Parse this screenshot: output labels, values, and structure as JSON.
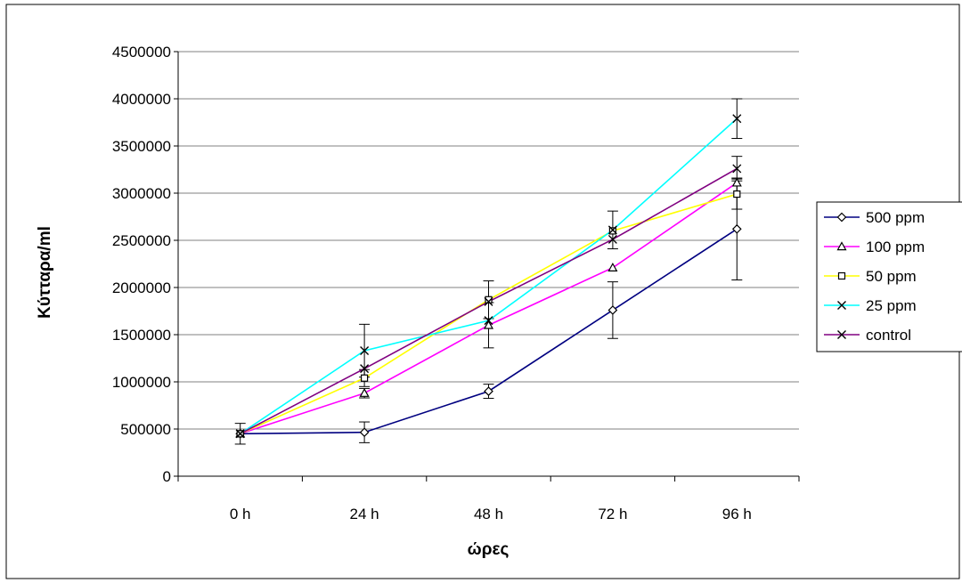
{
  "chart_data": {
    "type": "line",
    "title": "",
    "xlabel": "ώρες",
    "ylabel": "Κύτταρα/ml",
    "categories": [
      "0 h",
      "24 h",
      "48 h",
      "72 h",
      "96 h"
    ],
    "ylim": [
      0,
      4500000
    ],
    "yticks": [
      0,
      500000,
      1000000,
      1500000,
      2000000,
      2500000,
      3000000,
      3500000,
      4000000,
      4500000
    ],
    "ytick_labels": [
      "0",
      "500000",
      "1000000",
      "1500000",
      "2000000",
      "2500000",
      "3000000",
      "3500000",
      "4000000",
      "4500000"
    ],
    "grid": "horizontal",
    "legend_position": "right",
    "series": [
      {
        "name": "500 ppm",
        "color": "#000080",
        "marker": "diamond",
        "values": [
          450000,
          465000,
          900000,
          1760000,
          2620000
        ],
        "error": [
          110000,
          110000,
          75000,
          300000,
          540000
        ]
      },
      {
        "name": "100 ppm",
        "color": "#ff00ff",
        "marker": "triangle",
        "values": [
          450000,
          880000,
          1600000,
          2210000,
          3110000
        ],
        "error": [
          0,
          50000,
          240000,
          0,
          0
        ]
      },
      {
        "name": "50 ppm",
        "color": "#ffff00",
        "marker": "square",
        "values": [
          450000,
          1040000,
          1870000,
          2600000,
          2990000
        ],
        "error": [
          0,
          90000,
          200000,
          0,
          160000
        ]
      },
      {
        "name": "25 ppm",
        "color": "#00ffff",
        "marker": "x",
        "values": [
          450000,
          1330000,
          1650000,
          2610000,
          3790000
        ],
        "error": [
          0,
          280000,
          0,
          200000,
          210000
        ]
      },
      {
        "name": "control",
        "color": "#800080",
        "marker": "x",
        "values": [
          450000,
          1140000,
          1850000,
          2510000,
          3260000
        ],
        "error": [
          0,
          0,
          0,
          0,
          130000
        ]
      }
    ]
  }
}
